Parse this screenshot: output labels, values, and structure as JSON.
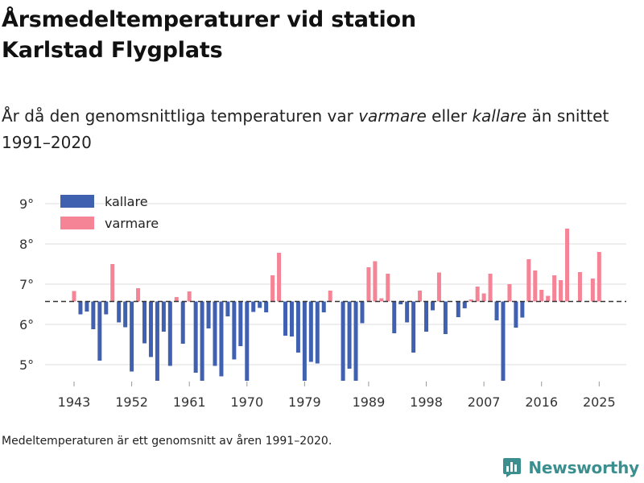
{
  "title_line1": "Årsmedeltemperaturer vid station",
  "title_line2": "Karlstad Flygplats",
  "subtitle": {
    "part1": "År då den genomsnittliga temperaturen var ",
    "warm_word": "varmare",
    "part2": " eller ",
    "cold_word": "kallare",
    "part3": " än snittet 1991–2020"
  },
  "footnote": "Medeltemperaturen är ett genomsnitt av åren 1991–2020.",
  "brand": "Newsworthy",
  "colors": {
    "colder": "#4060b0",
    "warmer": "#f48496",
    "baseline": "#333333",
    "grid": "#dddddd",
    "brand": "#3d8f8f"
  },
  "chart_data": {
    "type": "bar",
    "baseline": 6.57,
    "ylim": [
      4.5,
      9.5
    ],
    "y_ticks": [
      5,
      6,
      7,
      8,
      9
    ],
    "y_tick_labels": [
      "5°",
      "6°",
      "7°",
      "8°",
      "9°"
    ],
    "x_ticks": [
      1943,
      1952,
      1961,
      1970,
      1979,
      1989,
      1998,
      2007,
      2016,
      2025
    ],
    "x_tick_labels": [
      "1943",
      "1952",
      "1961",
      "1970",
      "1979",
      "1989",
      "1998",
      "2007",
      "2016",
      "2025"
    ],
    "legend": {
      "position": "top-left",
      "items": [
        {
          "label": "kallare",
          "key": "colder"
        },
        {
          "label": "varmare",
          "key": "warmer"
        }
      ]
    },
    "years": [
      1943,
      1944,
      1945,
      1946,
      1947,
      1948,
      1949,
      1950,
      1951,
      1952,
      1953,
      1954,
      1955,
      1956,
      1957,
      1958,
      1959,
      1960,
      1961,
      1962,
      1963,
      1964,
      1965,
      1966,
      1967,
      1968,
      1969,
      1970,
      1971,
      1972,
      1973,
      1974,
      1975,
      1976,
      1977,
      1978,
      1979,
      1980,
      1981,
      1982,
      1983,
      1984,
      1985,
      1986,
      1987,
      1988,
      1989,
      1990,
      1991,
      1992,
      1993,
      1994,
      1995,
      1996,
      1997,
      1998,
      1999,
      2000,
      2001,
      2002,
      2003,
      2004,
      2005,
      2006,
      2007,
      2008,
      2009,
      2010,
      2011,
      2012,
      2013,
      2014,
      2015,
      2016,
      2017,
      2018,
      2019,
      2020,
      2021,
      2022,
      2023,
      2024,
      2025
    ],
    "values": [
      6.83,
      6.25,
      6.32,
      5.88,
      5.1,
      6.25,
      7.5,
      6.05,
      5.93,
      4.83,
      6.9,
      5.53,
      5.19,
      4.6,
      5.82,
      4.97,
      6.68,
      5.52,
      6.82,
      4.8,
      4.6,
      5.9,
      4.97,
      4.71,
      6.2,
      5.13,
      5.46,
      4.6,
      6.31,
      6.41,
      6.3,
      7.22,
      7.78,
      5.72,
      5.7,
      5.3,
      4.6,
      5.07,
      5.03,
      6.3,
      6.84,
      null,
      4.6,
      4.9,
      4.6,
      6.03,
      7.42,
      7.57,
      6.65,
      7.26,
      5.78,
      6.5,
      6.05,
      5.3,
      6.84,
      5.82,
      6.35,
      7.29,
      5.76,
      null,
      6.18,
      6.4,
      6.62,
      6.94,
      6.77,
      7.26,
      6.1,
      4.6,
      7.0,
      5.92,
      6.17,
      7.62,
      7.34,
      6.86,
      6.71,
      7.22,
      7.1,
      8.38,
      null,
      7.3,
      null,
      7.14,
      7.8
    ]
  }
}
